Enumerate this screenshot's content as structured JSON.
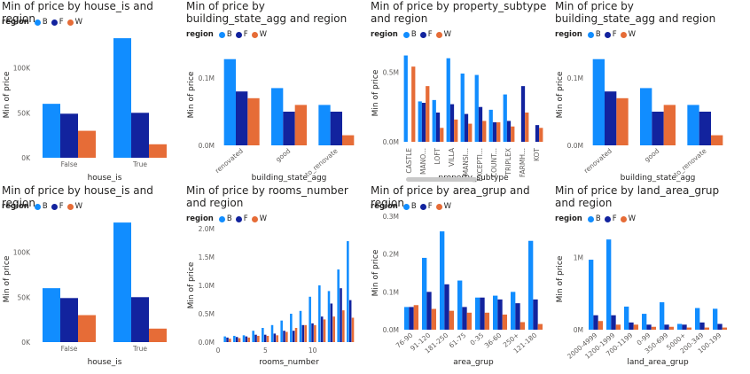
{
  "region_legend_title": "region",
  "colors": {
    "B": "#118DFF",
    "F": "#12239E",
    "W": "#E66C37"
  },
  "series_names": [
    "B",
    "F",
    "W"
  ],
  "chart_data": [
    {
      "type": "bar",
      "title": "Min of price by house_is and region",
      "xlabel": "house_is",
      "ylabel": "Min of price",
      "categories": [
        "False",
        "True"
      ],
      "series": [
        {
          "name": "B",
          "values": [
            60000,
            133000
          ]
        },
        {
          "name": "F",
          "values": [
            49000,
            50000
          ]
        },
        {
          "name": "W",
          "values": [
            30000,
            15000
          ]
        }
      ],
      "ylim": [
        0,
        140000
      ],
      "yticks": [
        {
          "v": 0,
          "l": "0K"
        },
        {
          "v": 50000,
          "l": "50K"
        },
        {
          "v": 100000,
          "l": "100K"
        }
      ],
      "xlabels_rotated": false,
      "legend": "top-left"
    },
    {
      "type": "bar",
      "title": "Min of price by building_state_agg and region",
      "xlabel": "building_state_agg",
      "ylabel": "Min of price",
      "categories": [
        "renovated",
        "good",
        "to_renovate"
      ],
      "series": [
        {
          "name": "B",
          "values": [
            128000,
            85000,
            60000
          ]
        },
        {
          "name": "F",
          "values": [
            80000,
            50000,
            50000
          ]
        },
        {
          "name": "W",
          "values": [
            70000,
            60000,
            15000
          ]
        }
      ],
      "ylim": [
        0,
        150000
      ],
      "yticks": [
        {
          "v": 0,
          "l": "0.0M"
        },
        {
          "v": 100000,
          "l": "0.1M"
        }
      ],
      "xlabels_rotated": true,
      "legend": "top-left"
    },
    {
      "type": "bar",
      "title": "Min of price by property_subtype and region",
      "xlabel": "property_subtype",
      "ylabel": "Min of price",
      "categories": [
        "CASTLE",
        "MANO...",
        "LOFT",
        "VILLA",
        "MANSI...",
        "EXCEPTI...",
        "COUNT...",
        "TRIPLEX",
        "FARMH...",
        "KOT"
      ],
      "series": [
        {
          "name": "B",
          "values": [
            620000,
            290000,
            300000,
            600000,
            490000,
            480000,
            230000,
            340000,
            null,
            null
          ]
        },
        {
          "name": "F",
          "values": [
            null,
            280000,
            210000,
            270000,
            200000,
            250000,
            140000,
            150000,
            400000,
            120000
          ]
        },
        {
          "name": "W",
          "values": [
            540000,
            400000,
            100000,
            160000,
            130000,
            150000,
            140000,
            110000,
            210000,
            100000
          ]
        }
      ],
      "ylim": [
        0,
        700000
      ],
      "yticks": [
        {
          "v": 0,
          "l": "0.0M"
        },
        {
          "v": 500000,
          "l": "0.5M"
        }
      ],
      "xlabels_rotated": true,
      "scrollbar": true,
      "legend": "top-left"
    },
    {
      "type": "bar",
      "title": "Min of price by building_state_agg and region",
      "xlabel": "building_state_agg",
      "ylabel": "Min of price",
      "categories": [
        "renovated",
        "good",
        "to_renovate"
      ],
      "series": [
        {
          "name": "B",
          "values": [
            128000,
            85000,
            60000
          ]
        },
        {
          "name": "F",
          "values": [
            80000,
            50000,
            50000
          ]
        },
        {
          "name": "W",
          "values": [
            70000,
            60000,
            15000
          ]
        }
      ],
      "ylim": [
        0,
        150000
      ],
      "yticks": [
        {
          "v": 0,
          "l": "0.0M"
        },
        {
          "v": 100000,
          "l": "0.1M"
        }
      ],
      "xlabels_rotated": true,
      "legend": "top-left"
    },
    {
      "type": "bar",
      "title": "Min of price by house_is and region",
      "xlabel": "house_is",
      "ylabel": "Min of price",
      "categories": [
        "False",
        "True"
      ],
      "series": [
        {
          "name": "B",
          "values": [
            60000,
            133000
          ]
        },
        {
          "name": "F",
          "values": [
            49000,
            50000
          ]
        },
        {
          "name": "W",
          "values": [
            30000,
            15000
          ]
        }
      ],
      "ylim": [
        0,
        140000
      ],
      "yticks": [
        {
          "v": 0,
          "l": "0K"
        },
        {
          "v": 50000,
          "l": "50K"
        },
        {
          "v": 100000,
          "l": "100K"
        }
      ],
      "xlabels_rotated": false,
      "legend": "top-left"
    },
    {
      "type": "bar",
      "title": "Min of price by rooms_number and region",
      "xlabel": "rooms_number",
      "ylabel": "Min of price",
      "numeric_x": true,
      "xlim": [
        0,
        15
      ],
      "xticks": [
        0,
        5,
        10
      ],
      "categories": [
        "1",
        "2",
        "3",
        "4",
        "5",
        "6",
        "7",
        "8",
        "9",
        "10",
        "11",
        "12",
        "13",
        "14"
      ],
      "series": [
        {
          "name": "B",
          "values": [
            100000,
            110000,
            120000,
            200000,
            250000,
            300000,
            380000,
            500000,
            550000,
            800000,
            1000000,
            900000,
            1280000,
            1780000
          ]
        },
        {
          "name": "F",
          "values": [
            80000,
            90000,
            100000,
            130000,
            130000,
            150000,
            200000,
            200000,
            300000,
            330000,
            450000,
            680000,
            950000,
            740000
          ]
        },
        {
          "name": "W",
          "values": [
            60000,
            70000,
            80000,
            110000,
            110000,
            120000,
            180000,
            250000,
            300000,
            300000,
            400000,
            450000,
            560000,
            430000
          ]
        }
      ],
      "ylim": [
        0,
        2000000
      ],
      "yticks": [
        {
          "v": 0,
          "l": "0.0M"
        },
        {
          "v": 500000,
          "l": "0.5M"
        },
        {
          "v": 1000000,
          "l": "1.0M"
        },
        {
          "v": 1500000,
          "l": "1.5M"
        },
        {
          "v": 2000000,
          "l": "2.0M"
        }
      ],
      "xlabels_rotated": false,
      "legend": "top-left"
    },
    {
      "type": "bar",
      "title": "Min of price by area_grup and region",
      "xlabel": "area_grup",
      "ylabel": "Min of price",
      "categories": [
        "76-90",
        "91-120",
        "181-250",
        "61-75",
        "0-35",
        "36-60",
        "250+",
        "121-180"
      ],
      "series": [
        {
          "name": "B",
          "values": [
            60000,
            190000,
            260000,
            130000,
            85000,
            90000,
            100000,
            235000
          ]
        },
        {
          "name": "F",
          "values": [
            60000,
            100000,
            120000,
            60000,
            85000,
            80000,
            70000,
            80000
          ]
        },
        {
          "name": "W",
          "values": [
            65000,
            55000,
            50000,
            45000,
            45000,
            40000,
            20000,
            15000
          ]
        }
      ],
      "ylim": [
        0,
        300000
      ],
      "yticks": [
        {
          "v": 0,
          "l": "0.0M"
        },
        {
          "v": 100000,
          "l": "0.1M"
        },
        {
          "v": 200000,
          "l": "0.2M"
        },
        {
          "v": 300000,
          "l": "0.3M"
        }
      ],
      "xlabels_rotated": true,
      "legend": "top-left"
    },
    {
      "type": "bar",
      "title": "Min of price by land_area_grup and region",
      "xlabel": "land_area_grup",
      "ylabel": "Min of price",
      "categories": [
        "2000-4999",
        "1200-1999",
        "700-1199",
        "0-99",
        "350-699",
        "5000+",
        "200-349",
        "100-199"
      ],
      "series": [
        {
          "name": "B",
          "values": [
            970000,
            1250000,
            320000,
            220000,
            380000,
            80000,
            300000,
            290000
          ]
        },
        {
          "name": "F",
          "values": [
            200000,
            200000,
            100000,
            70000,
            70000,
            70000,
            100000,
            80000
          ]
        },
        {
          "name": "W",
          "values": [
            120000,
            70000,
            70000,
            40000,
            40000,
            30000,
            30000,
            30000
          ]
        }
      ],
      "ylim": [
        0,
        1400000
      ],
      "yticks": [
        {
          "v": 0,
          "l": "0M"
        },
        {
          "v": 1000000,
          "l": "1M"
        }
      ],
      "xlabels_rotated": true,
      "legend": "top-left"
    }
  ]
}
